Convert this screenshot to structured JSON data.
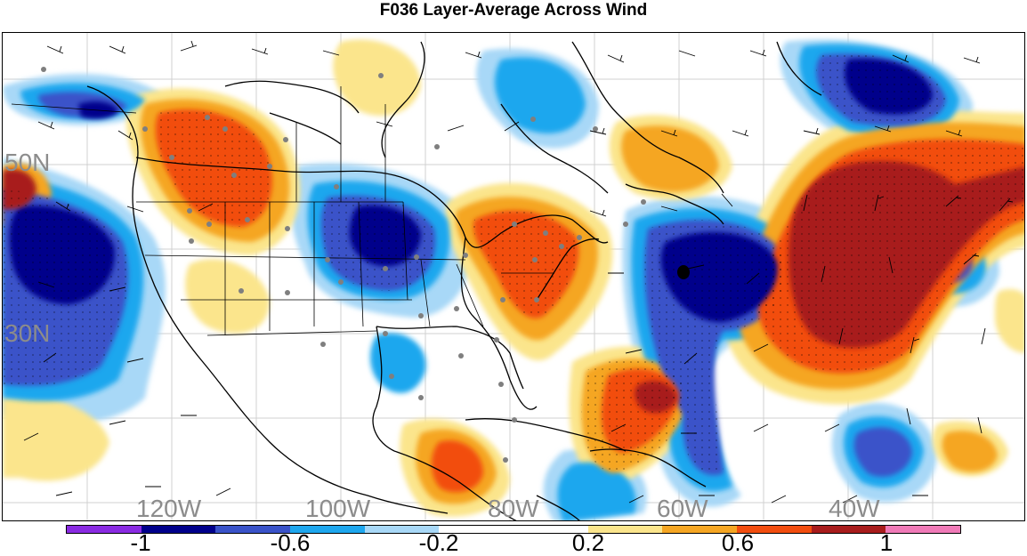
{
  "title": "F036 Layer-Average Across Wind",
  "map": {
    "lat_labels": [
      "50N",
      "30N"
    ],
    "lon_labels": [
      "120W",
      "100W",
      "80W",
      "60W",
      "40W"
    ],
    "marker": "black-dot"
  },
  "colorbar": {
    "colors": [
      "#8a2be2",
      "#00008b",
      "#3a53c9",
      "#1ea7ee",
      "#a8d8f7",
      "#ffffff",
      "#ffffff",
      "#fbe58c",
      "#f5a623",
      "#f24d0f",
      "#a81c1c",
      "#f07ab8"
    ],
    "tick_labels": [
      "-1",
      "-0.6",
      "-0.2",
      "0.2",
      "0.6",
      "1"
    ]
  },
  "palette": {
    "negative_strong": "#00008b",
    "negative_mid": "#3a53c9",
    "negative_light": "#1ea7ee",
    "negative_faint": "#a8d8f7",
    "positive_faint": "#fbe58c",
    "positive_light": "#f5a623",
    "positive_mid": "#f24d0f",
    "positive_strong": "#a81c1c"
  }
}
